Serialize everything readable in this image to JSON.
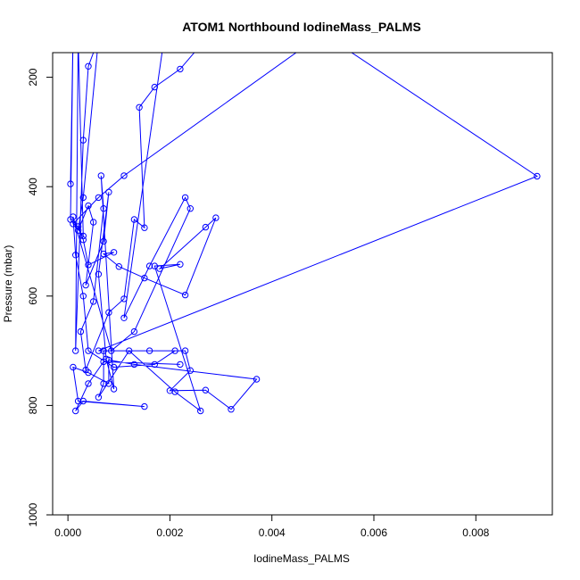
{
  "chart_data": {
    "type": "line",
    "title": "ATOM1 Northbound IodineMass_PALMS",
    "xlabel": "IodineMass_PALMS",
    "ylabel": "Pressure (mbar)",
    "xlim": [
      -0.0003,
      0.0095
    ],
    "ylim": [
      1000,
      155
    ],
    "y_reversed": true,
    "xticks": [
      0.0,
      0.002,
      0.004,
      0.006,
      0.008
    ],
    "xtick_labels": [
      "0.000",
      "0.002",
      "0.004",
      "0.006",
      "0.008"
    ],
    "yticks": [
      200,
      400,
      600,
      800,
      1000
    ],
    "ytick_labels": [
      "200",
      "400",
      "600",
      "800",
      "1000"
    ],
    "grid": false,
    "legend": "none",
    "marker": "open-circle",
    "series": [
      {
        "color": "#0000ff",
        "points": [
          [
            5e-05,
            395
          ],
          [
            0.0001,
            120
          ],
          [
            5e-05,
            460
          ],
          [
            0.0003,
            490
          ],
          [
            0.0002,
            130
          ],
          [
            0.00015,
            700
          ],
          [
            0.0003,
            315
          ],
          [
            0.0004,
            180
          ],
          [
            0.0006,
            130
          ],
          [
            0.0003,
            420
          ],
          [
            0.0002,
            480
          ],
          [
            0.0004,
            435
          ],
          [
            0.0005,
            465
          ],
          [
            0.00035,
            580
          ],
          [
            0.0007,
            500
          ],
          [
            0.0008,
            410
          ],
          [
            0.0006,
            560
          ],
          [
            0.00075,
            715
          ],
          [
            0.0009,
            770
          ],
          [
            0.00065,
            380
          ],
          [
            0.0007,
            440
          ],
          [
            0.0005,
            610
          ],
          [
            0.00025,
            665
          ],
          [
            0.00035,
            735
          ],
          [
            0.0008,
            630
          ],
          [
            0.0011,
            605
          ],
          [
            0.0013,
            460
          ],
          [
            0.0015,
            475
          ],
          [
            0.0014,
            255
          ],
          [
            0.0017,
            218
          ],
          [
            0.0022,
            185
          ],
          [
            0.0028,
            120
          ],
          [
            0.0019,
            120
          ],
          [
            0.0011,
            640
          ],
          [
            0.0016,
            545
          ],
          [
            0.0023,
            420
          ],
          [
            0.0024,
            440
          ],
          [
            0.0013,
            665
          ],
          [
            0.00085,
            700
          ],
          [
            0.0001,
            455
          ],
          [
            0.00015,
            525
          ],
          [
            0.0003,
            600
          ],
          [
            0.0004,
            700
          ],
          [
            0.0009,
            730
          ],
          [
            0.0017,
            725
          ],
          [
            0.0021,
            700
          ],
          [
            0.0007,
            700
          ],
          [
            0.0007,
            760
          ],
          [
            0.0006,
            785
          ],
          [
            0.0012,
            700
          ],
          [
            0.0021,
            775
          ],
          [
            0.0026,
            810
          ],
          [
            0.0017,
            545
          ],
          [
            0.0022,
            542
          ],
          [
            0.0018,
            550
          ],
          [
            0.0027,
            474
          ],
          [
            0.0029,
            457
          ],
          [
            0.0023,
            598
          ],
          [
            0.0015,
            567
          ],
          [
            0.001,
            546
          ],
          [
            0.0007,
            523
          ],
          [
            0.0009,
            520
          ],
          [
            0.0004,
            543
          ],
          [
            0.0003,
            497
          ],
          [
            0.0002,
            473
          ],
          [
            0.0001,
            468
          ],
          [
            0.0006,
            420
          ],
          [
            0.0011,
            380
          ],
          [
            0.005,
            120
          ],
          [
            0.0092,
            381
          ],
          [
            0.0006,
            700
          ],
          [
            0.0016,
            700
          ],
          [
            0.0023,
            700
          ],
          [
            0.0024,
            736
          ],
          [
            0.002,
            773
          ],
          [
            0.0027,
            772
          ],
          [
            0.0032,
            807
          ],
          [
            0.0037,
            752
          ],
          [
            0.0013,
            725
          ],
          [
            0.0008,
            717
          ],
          [
            0.0008,
            760
          ],
          [
            0.0004,
            740
          ],
          [
            0.0001,
            730
          ],
          [
            0.0002,
            792
          ],
          [
            0.0015,
            802
          ],
          [
            0.0003,
            792
          ],
          [
            0.00015,
            810
          ],
          [
            0.0004,
            760
          ],
          [
            0.0007,
            720
          ],
          [
            0.0022,
            725
          ]
        ]
      }
    ]
  }
}
